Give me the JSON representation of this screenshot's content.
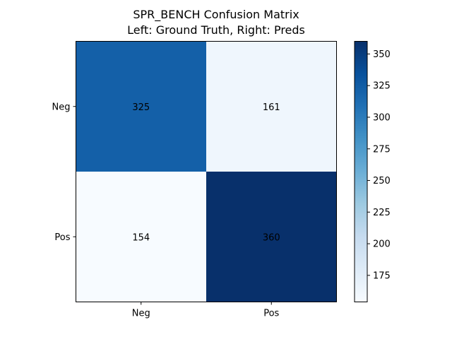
{
  "chart_data": {
    "type": "heatmap",
    "title": "SPR_BENCH Confusion Matrix",
    "subtitle": "Left: Ground Truth, Right: Preds",
    "x_categories": [
      "Neg",
      "Pos"
    ],
    "y_categories": [
      "Neg",
      "Pos"
    ],
    "values": [
      [
        325,
        161
      ],
      [
        154,
        360
      ]
    ],
    "colorbar": {
      "colormap": "Blues",
      "range": [
        154,
        360
      ],
      "ticks": [
        175,
        200,
        225,
        250,
        275,
        300,
        325,
        350
      ]
    },
    "colors": {
      "cell_0_0": "#1460a8",
      "cell_0_1": "#eff6fd",
      "cell_1_0": "#f7fbff",
      "cell_1_1": "#08306b"
    },
    "grid": false,
    "legend": "colorbar-right"
  }
}
